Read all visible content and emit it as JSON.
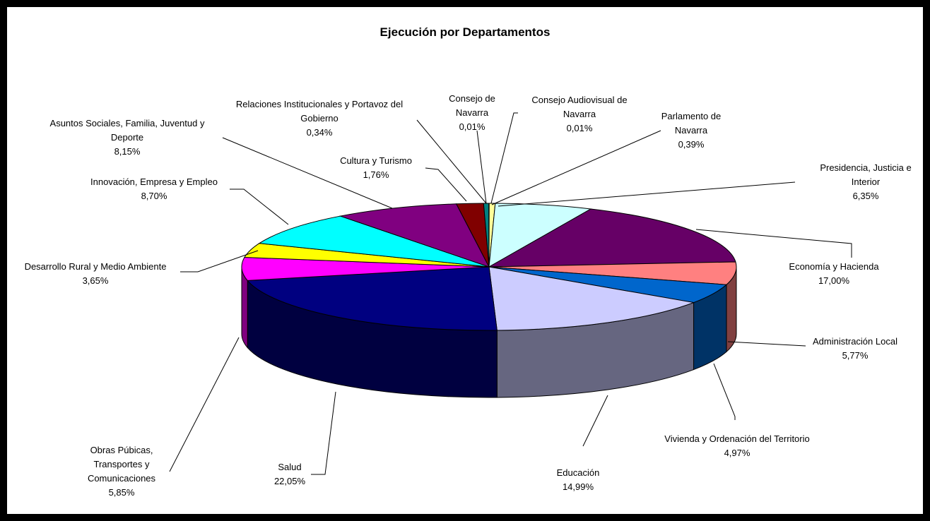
{
  "chart_data": {
    "type": "pie",
    "title": "Ejecución por Departamentos",
    "categories": [
      "Consejo Audiovisual de Navarra",
      "Parlamento de Navarra",
      "Presidencia, Justicia e Interior",
      "Economía y Hacienda",
      "Administración Local",
      "Vivienda y Ordenación del Territorio",
      "Educación",
      "Salud",
      "Obras Púbicas, Transportes y Comunicaciones",
      "Desarrollo Rural y Medio Ambiente",
      "Innovación, Empresa y Empleo",
      "Asuntos Sociales, Familia, Juventud y Deporte",
      "Cultura y Turismo",
      "Relaciones Institucionales y Portavoz del Gobierno",
      "Consejo de Navarra"
    ],
    "values": [
      0.01,
      0.39,
      6.35,
      17.0,
      5.77,
      4.97,
      14.99,
      22.05,
      5.85,
      3.65,
      8.7,
      8.15,
      1.76,
      0.34,
      0.01
    ],
    "value_labels": [
      "0,01%",
      "0,39%",
      "6,35%",
      "17,00%",
      "5,77%",
      "4,97%",
      "14,99%",
      "22,05%",
      "5,85%",
      "3,65%",
      "8,70%",
      "8,15%",
      "1,76%",
      "0,34%",
      "0,01%"
    ],
    "colors": [
      "#ffffcc",
      "#ffff99",
      "#ccffff",
      "#660066",
      "#ff8080",
      "#0066cc",
      "#ccccff",
      "#000080",
      "#ff00ff",
      "#ffff00",
      "#00ffff",
      "#800080",
      "#800000",
      "#008080",
      "#00ccff"
    ]
  }
}
